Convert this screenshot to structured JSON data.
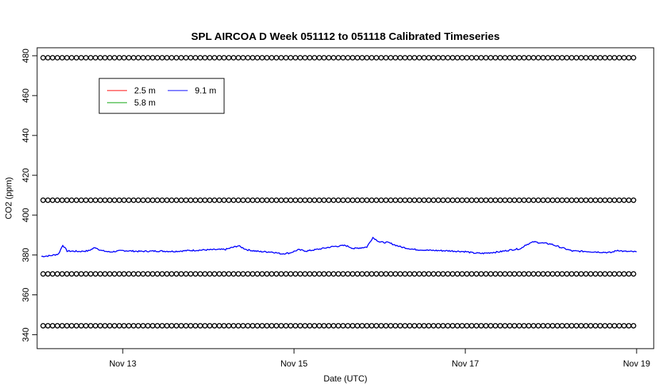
{
  "chart_data": {
    "type": "line",
    "title": "SPL AIRCOA D  Week 051112 to 051118  Calibrated Timeseries",
    "xlabel": "Date (UTC)",
    "ylabel": "CO2 (ppm)",
    "xlim": [
      12.0,
      19.2
    ],
    "ylim": [
      333,
      484
    ],
    "x_ticks": [
      {
        "value": 13,
        "label": "Nov 13"
      },
      {
        "value": 15,
        "label": "Nov 15"
      },
      {
        "value": 17,
        "label": "Nov 17"
      },
      {
        "value": 19,
        "label": "Nov 19"
      }
    ],
    "y_ticks": [
      340,
      360,
      380,
      400,
      420,
      440,
      460,
      480
    ],
    "grid": false,
    "legend": {
      "placement": "top-left",
      "entries": [
        {
          "label": "2.5 m",
          "color": "#ff0000"
        },
        {
          "label": "5.8 m",
          "color": "#00a000"
        },
        {
          "label": "9.1 m",
          "color": "#0000ff"
        }
      ]
    },
    "series": [
      {
        "name": "9.1 m",
        "color": "#0000ff",
        "x_range_days": [
          12.05,
          19.0
        ],
        "points": [
          [
            12.05,
            379.3
          ],
          [
            12.15,
            379.6
          ],
          [
            12.25,
            380.5
          ],
          [
            12.3,
            385.0
          ],
          [
            12.35,
            382.0
          ],
          [
            12.5,
            381.8
          ],
          [
            12.6,
            382.1
          ],
          [
            12.68,
            383.8
          ],
          [
            12.75,
            382.2
          ],
          [
            12.85,
            381.5
          ],
          [
            13.0,
            382.2
          ],
          [
            13.2,
            381.8
          ],
          [
            13.4,
            382.0
          ],
          [
            13.6,
            381.8
          ],
          [
            13.8,
            382.3
          ],
          [
            14.0,
            382.6
          ],
          [
            14.2,
            382.8
          ],
          [
            14.35,
            384.6
          ],
          [
            14.45,
            382.6
          ],
          [
            14.6,
            381.7
          ],
          [
            14.75,
            381.5
          ],
          [
            14.85,
            380.6
          ],
          [
            14.95,
            381.0
          ],
          [
            15.05,
            382.6
          ],
          [
            15.15,
            382.0
          ],
          [
            15.3,
            383.0
          ],
          [
            15.45,
            384.2
          ],
          [
            15.6,
            384.8
          ],
          [
            15.7,
            383.2
          ],
          [
            15.85,
            384.0
          ],
          [
            15.92,
            388.8
          ],
          [
            16.0,
            386.5
          ],
          [
            16.1,
            386.2
          ],
          [
            16.25,
            384.0
          ],
          [
            16.4,
            382.8
          ],
          [
            16.6,
            382.3
          ],
          [
            16.8,
            382.1
          ],
          [
            17.0,
            381.7
          ],
          [
            17.1,
            381.0
          ],
          [
            17.2,
            380.8
          ],
          [
            17.4,
            381.6
          ],
          [
            17.55,
            382.7
          ],
          [
            17.65,
            383.2
          ],
          [
            17.7,
            385.0
          ],
          [
            17.8,
            386.6
          ],
          [
            17.9,
            386.0
          ],
          [
            18.0,
            385.5
          ],
          [
            18.1,
            384.0
          ],
          [
            18.25,
            382.0
          ],
          [
            18.4,
            381.8
          ],
          [
            18.55,
            381.5
          ],
          [
            18.7,
            381.2
          ],
          [
            18.78,
            382.4
          ],
          [
            18.85,
            381.8
          ],
          [
            19.0,
            381.6
          ]
        ]
      }
    ],
    "reference_levels": [
      {
        "value": 479,
        "x_range": [
          12.05,
          19.0
        ],
        "marker": "circle"
      },
      {
        "value": 407.5,
        "x_range": [
          12.05,
          19.0
        ],
        "marker": "circle"
      },
      {
        "value": 370.5,
        "x_range": [
          12.05,
          19.0
        ],
        "marker": "circle"
      },
      {
        "value": 344.5,
        "x_range": [
          12.05,
          19.0
        ],
        "marker": "circle"
      }
    ]
  }
}
